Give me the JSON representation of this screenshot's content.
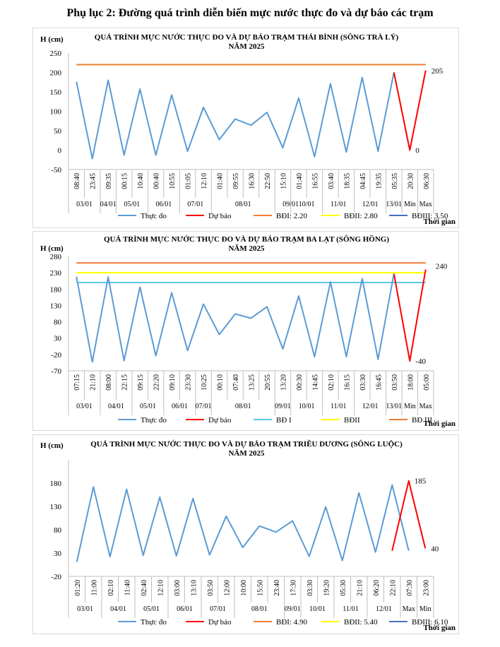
{
  "page_title": "Phụ lục 2: Đường quá trình diễn biến mực nước thực đo và dự báo các trạm",
  "chart_data": [
    {
      "type": "line",
      "title": "QUÁ TRÌNH MỰC NƯỚC THỰC ĐO VÀ DỰ BÁO TRẠM THÁI BÌNH (SÔNG TRÀ LÝ)",
      "subtitle": "NĂM 2025",
      "ylabel": "H (cm)",
      "xlabel": "Thời gian",
      "ylim": [
        -50,
        250
      ],
      "yticks": [
        "250",
        "200",
        "150",
        "100",
        "50",
        "0",
        "-50"
      ],
      "ytick_values": [
        250,
        200,
        150,
        100,
        50,
        0,
        -50
      ],
      "times": [
        "08:40",
        "23:45",
        "09:35",
        "00:15",
        "10:40",
        "00:40",
        "10:55",
        "01:05",
        "12:10",
        "01:40",
        "09:55",
        "16:30",
        "22:50",
        "15:10",
        "01:40",
        "16:55",
        "03:40",
        "18:35",
        "04:45",
        "19:35",
        "05:35",
        "20:30",
        "06:30"
      ],
      "date_groups": [
        {
          "label": "03/01",
          "start": 0,
          "end": 1
        },
        {
          "label": "04/01",
          "start": 2,
          "end": 2
        },
        {
          "label": "05/01",
          "start": 3,
          "end": 4
        },
        {
          "label": "06/01",
          "start": 5,
          "end": 6
        },
        {
          "label": "07/01",
          "start": 7,
          "end": 8
        },
        {
          "label": "08/01",
          "start": 9,
          "end": 12
        },
        {
          "label": "09/01",
          "start": 13,
          "end": 13
        },
        {
          "label": "10/01",
          "start": 14,
          "end": 15
        },
        {
          "label": "11/01",
          "start": 16,
          "end": 17
        },
        {
          "label": "12/01",
          "start": 18,
          "end": 19
        },
        {
          "label": "13/01",
          "start": 20,
          "end": 20
        },
        {
          "label": "Min",
          "start": 21,
          "end": 21
        },
        {
          "label": "Max",
          "start": 22,
          "end": 22
        }
      ],
      "date_label_shift": [
        0,
        0,
        0,
        0,
        0,
        0,
        0.5,
        0,
        0,
        0,
        0,
        0,
        0
      ],
      "series": [
        {
          "name": "Thực đo",
          "color": "#5b9bd5",
          "start": 0,
          "values": [
            176,
            -22,
            180,
            -13,
            157,
            -13,
            142,
            -3,
            110,
            27,
            80,
            64,
            97,
            6,
            134,
            -17,
            171,
            -5,
            187,
            -3,
            200
          ]
        },
        {
          "name": "Dự báo",
          "color": "#ff0000",
          "start": 20,
          "values": [
            200,
            0,
            205
          ]
        }
      ],
      "thresholds": [
        {
          "name": "BĐI: 2.20",
          "color": "#ed7d31",
          "value": 220
        }
      ],
      "legend": [
        {
          "name": "Thực đo",
          "color": "#5b9bd5"
        },
        {
          "name": "Dự báo",
          "color": "#ff0000"
        },
        {
          "name": "BĐI: 2.20",
          "color": "#ed7d31"
        },
        {
          "name": "BĐII: 2.80",
          "color": "#ffff00"
        },
        {
          "name": "BĐIII: 3.50",
          "color": "#4472c4"
        }
      ],
      "annotations": [
        {
          "text": "205",
          "point": 22,
          "value": 205,
          "pos": "right"
        },
        {
          "text": "0",
          "point": 21,
          "value": 0,
          "pos": "right"
        }
      ]
    },
    {
      "type": "line",
      "title": "QUÁ TRÌNH MỰC NƯỚC THỰC ĐO VÀ DỰ BÁO TRẠM BA LẠT (SÔNG HỒNG)",
      "subtitle": "NĂM 2025",
      "ylabel": "H (cm)",
      "xlabel": "Thời gian",
      "ylim": [
        -70,
        280
      ],
      "yticks": [
        "280",
        "230",
        "180",
        "130",
        "80",
        "30",
        "-20",
        "-70"
      ],
      "ytick_values": [
        280,
        230,
        180,
        130,
        80,
        30,
        -20,
        -70
      ],
      "times": [
        "07:15",
        "21:10",
        "08:00",
        "22:15",
        "09:15",
        "22:20",
        "09:10",
        "23:30",
        "10:25",
        "00:10",
        "07:40",
        "13:25",
        "20:55",
        "13:20",
        "00:30",
        "14:45",
        "02:10",
        "16:15",
        "03:30",
        "16:45",
        "03:50",
        "18:00",
        "05:00"
      ],
      "date_groups": [
        {
          "label": "03/01",
          "start": 0,
          "end": 1
        },
        {
          "label": "04/01",
          "start": 2,
          "end": 3
        },
        {
          "label": "05/01",
          "start": 4,
          "end": 5
        },
        {
          "label": "06/01",
          "start": 6,
          "end": 7
        },
        {
          "label": "07/01",
          "start": 8,
          "end": 8
        },
        {
          "label": "08/01",
          "start": 9,
          "end": 12
        },
        {
          "label": "09/01",
          "start": 13,
          "end": 13
        },
        {
          "label": "10/01",
          "start": 14,
          "end": 15
        },
        {
          "label": "11/01",
          "start": 16,
          "end": 17
        },
        {
          "label": "12/01",
          "start": 18,
          "end": 19
        },
        {
          "label": "13/01",
          "start": 20,
          "end": 20
        },
        {
          "label": "Min",
          "start": 21,
          "end": 21
        },
        {
          "label": "Max",
          "start": 22,
          "end": 22
        }
      ],
      "date_label_shift": [
        0,
        0,
        0,
        0,
        0,
        0,
        0,
        0,
        0,
        0,
        0,
        0,
        0
      ],
      "series": [
        {
          "name": "Thực đo",
          "color": "#5b9bd5",
          "start": 0,
          "values": [
            218,
            -43,
            217,
            -39,
            186,
            -24,
            169,
            -8,
            134,
            41,
            104,
            91,
            126,
            -3,
            159,
            -27,
            202,
            -27,
            212,
            -35,
            227
          ]
        },
        {
          "name": "Dự báo",
          "color": "#ff0000",
          "start": 20,
          "values": [
            227,
            -40,
            240
          ]
        }
      ],
      "thresholds": [
        {
          "name": "BĐ I",
          "color": "#5bc8e8",
          "value": 200
        },
        {
          "name": "BĐII",
          "color": "#ffff00",
          "value": 230
        },
        {
          "name": "BĐ III",
          "color": "#ed7d31",
          "value": 260
        }
      ],
      "legend": [
        {
          "name": "Thực đo",
          "color": "#5b9bd5"
        },
        {
          "name": "Dự báo",
          "color": "#ff0000"
        },
        {
          "name": "BĐ I",
          "color": "#5bc8e8"
        },
        {
          "name": "BĐII",
          "color": "#ffff00"
        },
        {
          "name": "BĐ III",
          "color": "#ed7d31"
        }
      ],
      "annotations": [
        {
          "text": "240",
          "point": 22,
          "value": 240,
          "pos": "right-up"
        },
        {
          "text": "-40",
          "point": 21,
          "value": -40,
          "pos": "right"
        }
      ]
    },
    {
      "type": "line",
      "title": "QUÁ TRÌNH MỰC NƯỚC THỰC ĐO VÀ DỰ BÁO TRẠM TRIỀU DƯƠNG (SÔNG LUỘC)",
      "subtitle": "NĂM 2025",
      "ylabel": "H (cm)",
      "xlabel": "Thời gian",
      "ylim": [
        -20,
        230
      ],
      "yticks": [
        "180",
        "130",
        "80",
        "30",
        "-20"
      ],
      "ytick_values": [
        180,
        130,
        80,
        30,
        -20
      ],
      "times": [
        "01:20",
        "11:00",
        "02:10",
        "11:40",
        "02:40",
        "12:10",
        "03:00",
        "13:10",
        "03:50",
        "12:00",
        "10:00",
        "15:50",
        "23:40",
        "17:30",
        "03:30",
        "19:20",
        "05:30",
        "21:10",
        "06:20",
        "22:10",
        "07:30",
        "23:00"
      ],
      "date_groups": [
        {
          "label": "03/01",
          "start": 0,
          "end": 1
        },
        {
          "label": "04/01",
          "start": 2,
          "end": 3
        },
        {
          "label": "05/01",
          "start": 4,
          "end": 5
        },
        {
          "label": "06/01",
          "start": 6,
          "end": 7
        },
        {
          "label": "07/01",
          "start": 8,
          "end": 9
        },
        {
          "label": "08/01",
          "start": 10,
          "end": 12
        },
        {
          "label": "09/01",
          "start": 13,
          "end": 13
        },
        {
          "label": "10/01",
          "start": 14,
          "end": 15
        },
        {
          "label": "11/01",
          "start": 16,
          "end": 17
        },
        {
          "label": "12/01",
          "start": 18,
          "end": 19
        },
        {
          "label": "Max",
          "start": 20,
          "end": 20
        },
        {
          "label": "Min",
          "start": 21,
          "end": 21
        }
      ],
      "date_label_shift": [
        0,
        0,
        0,
        0,
        0,
        0,
        0,
        0,
        0,
        0,
        0,
        0
      ],
      "series": [
        {
          "name": "Thực đo",
          "color": "#5b9bd5",
          "start": 0,
          "values": [
            11,
            172,
            22,
            167,
            25,
            150,
            24,
            147,
            26,
            109,
            42,
            88,
            75,
            99,
            23,
            129,
            14,
            159,
            32,
            176,
            35
          ]
        },
        {
          "name": "Dự báo",
          "color": "#ff0000",
          "start": 19,
          "values": [
            35,
            185,
            40
          ]
        }
      ],
      "thresholds": [],
      "legend": [
        {
          "name": "Thực đo",
          "color": "#5b9bd5"
        },
        {
          "name": "Dự báo",
          "color": "#ff0000"
        },
        {
          "name": "BĐI: 4.90",
          "color": "#ed7d31"
        },
        {
          "name": "BĐII: 5.40",
          "color": "#ffff00"
        },
        {
          "name": "BĐIII: 6.10",
          "color": "#4472c4"
        }
      ],
      "annotations": [
        {
          "text": "185",
          "point": 20,
          "value": 185,
          "pos": "right"
        },
        {
          "text": "40",
          "point": 21,
          "value": 40,
          "pos": "right"
        }
      ]
    }
  ]
}
